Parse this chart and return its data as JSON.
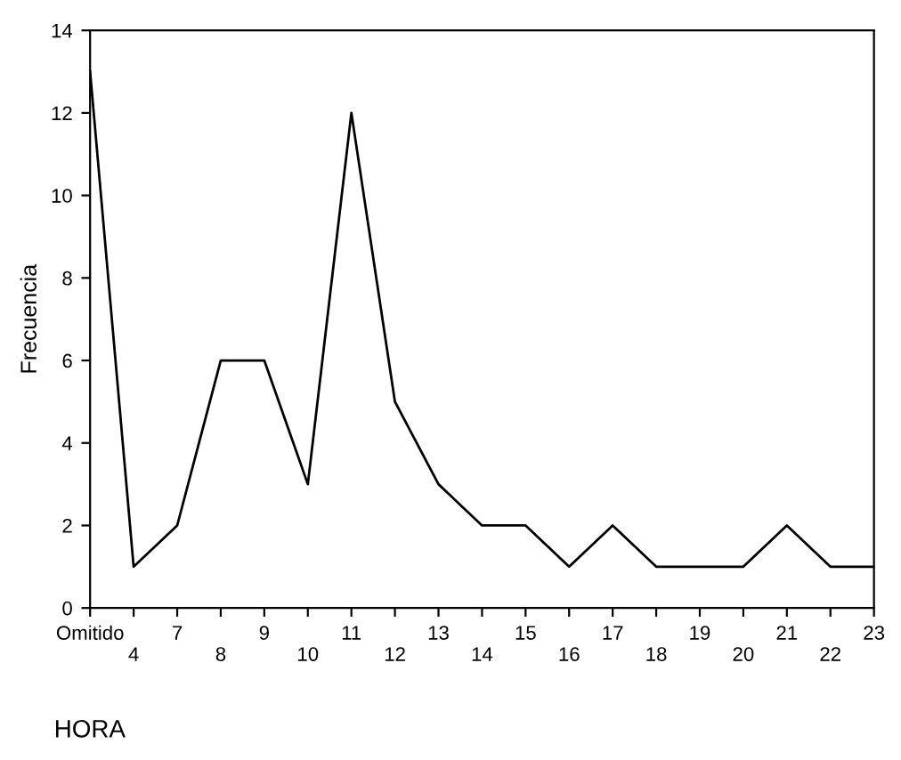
{
  "chart_data": {
    "type": "line",
    "xlabel": "HORA",
    "ylabel": "Frecuencia",
    "categories": [
      "Omitido",
      "4",
      "7",
      "8",
      "9",
      "10",
      "11",
      "12",
      "13",
      "14",
      "15",
      "16",
      "17",
      "18",
      "19",
      "20",
      "21",
      "22",
      "23"
    ],
    "values": [
      13,
      1,
      2,
      6,
      6,
      3,
      12,
      5,
      3,
      2,
      2,
      1,
      2,
      1,
      1,
      1,
      2,
      1,
      1
    ],
    "color": "#000000",
    "ylim": [
      0,
      14
    ],
    "yticks": [
      0,
      2,
      4,
      6,
      8,
      10,
      12,
      14
    ],
    "grid": false,
    "marker": "none",
    "line_style": "solid"
  }
}
